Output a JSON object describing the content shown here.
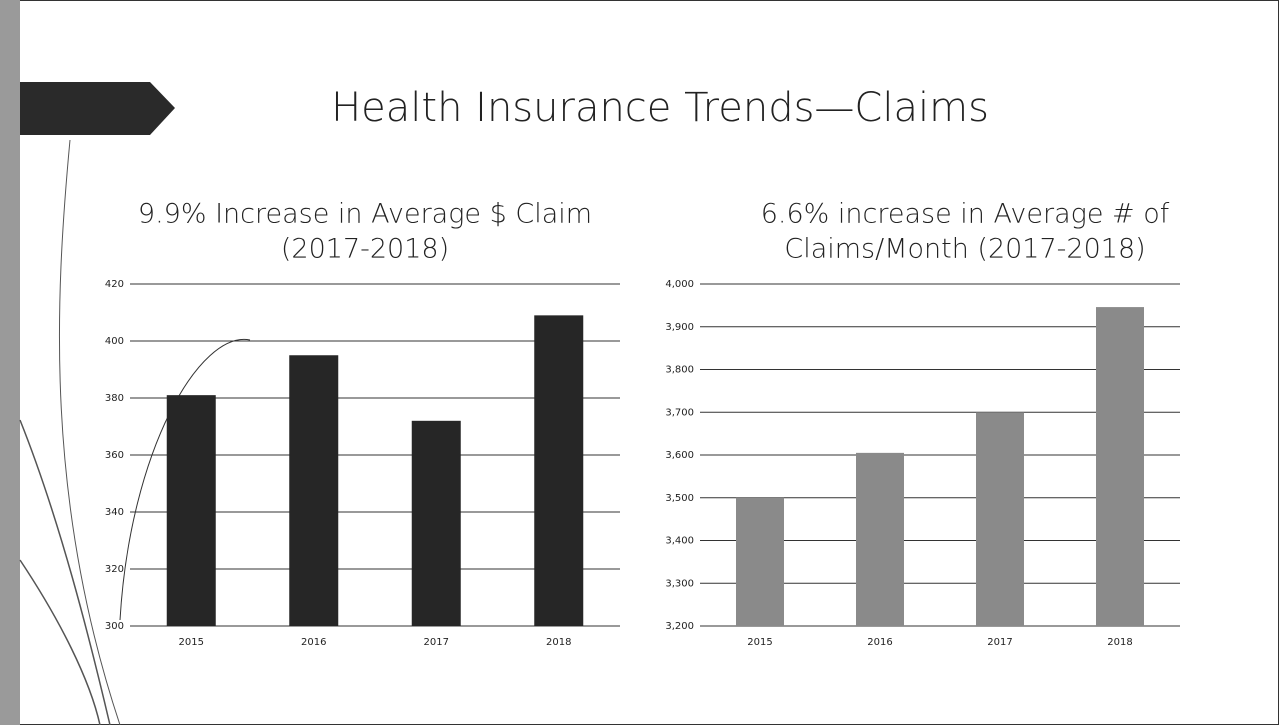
{
  "title": "Health Insurance Trends—Claims",
  "chart_data": [
    {
      "type": "bar",
      "title": [
        "9.9% Increase in Average $ Claim",
        "(2017-2018)"
      ],
      "categories": [
        "2015",
        "2016",
        "2017",
        "2018"
      ],
      "values": [
        381,
        395,
        372,
        409
      ],
      "color": "#262626",
      "ylim": [
        300,
        420
      ],
      "yticks": [
        300,
        320,
        340,
        360,
        380,
        400,
        420
      ],
      "grid": true
    },
    {
      "type": "bar",
      "title": [
        "6.6% increase in Average # of",
        "Claims/Month (2017-2018)"
      ],
      "categories": [
        "2015",
        "2016",
        "2017",
        "2018"
      ],
      "values": [
        3500,
        3605,
        3700,
        3946
      ],
      "color": "#8a8a8a",
      "ylim": [
        3200,
        4000
      ],
      "yticks": [
        {
          "value": 3200,
          "label": "3,200"
        },
        {
          "value": 3300,
          "label": "3,300"
        },
        {
          "value": 3400,
          "label": "3,400"
        },
        {
          "value": 3500,
          "label": "3,500"
        },
        {
          "value": 3600,
          "label": "3,600"
        },
        {
          "value": 3700,
          "label": "3,700"
        },
        {
          "value": 3800,
          "label": "3,800"
        },
        {
          "value": 3900,
          "label": "3,900"
        },
        {
          "value": 4000,
          "label": "4,000"
        }
      ],
      "grid": true
    }
  ]
}
